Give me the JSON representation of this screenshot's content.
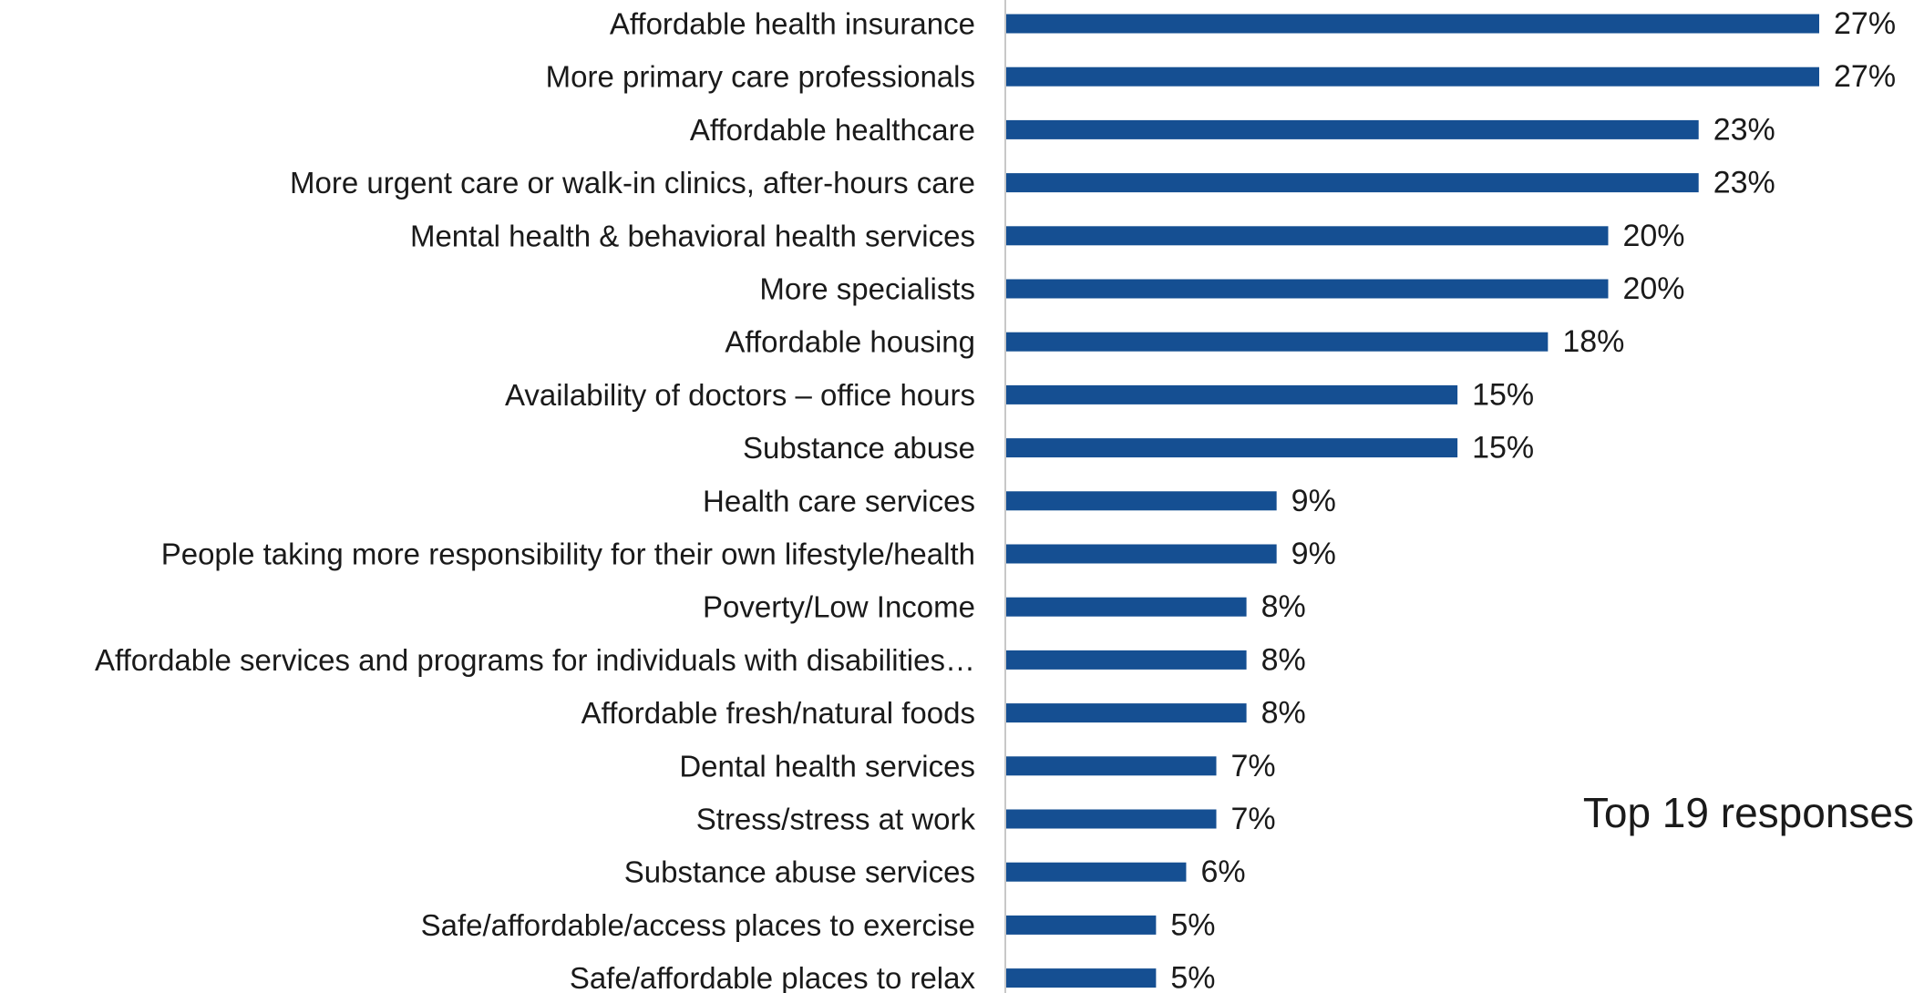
{
  "chart_data": {
    "type": "bar",
    "orientation": "horizontal",
    "categories": [
      "Affordable health insurance",
      "More primary care professionals",
      "Affordable healthcare",
      "More urgent care or walk-in clinics, after-hours care",
      "Mental health & behavioral health services",
      "More specialists",
      "Affordable housing",
      "Availability of doctors – office hours",
      "Substance abuse",
      "Health care services",
      "People taking more responsibility for their own lifestyle/health",
      "Poverty/Low Income",
      "Affordable services and programs for individuals with disabilities…",
      "Affordable fresh/natural foods",
      "Dental health services",
      "Stress/stress at work",
      "Substance abuse services",
      "Safe/affordable/access places to exercise",
      "Safe/affordable places to relax"
    ],
    "values": [
      27,
      27,
      23,
      23,
      20,
      20,
      18,
      15,
      15,
      9,
      9,
      8,
      8,
      8,
      7,
      7,
      6,
      5,
      5
    ],
    "value_labels": [
      "27%",
      "27%",
      "23%",
      "23%",
      "20%",
      "20%",
      "18%",
      "15%",
      "15%",
      "9%",
      "9%",
      "8%",
      "8%",
      "8%",
      "7%",
      "7%",
      "6%",
      "5%",
      "5%"
    ],
    "unit": "%",
    "xlim": [
      0,
      27
    ],
    "grid": false,
    "legend": "none",
    "bar_color": "#154f92",
    "axis_color": "#c8c8c8",
    "annotation": "Top 19 responses"
  }
}
